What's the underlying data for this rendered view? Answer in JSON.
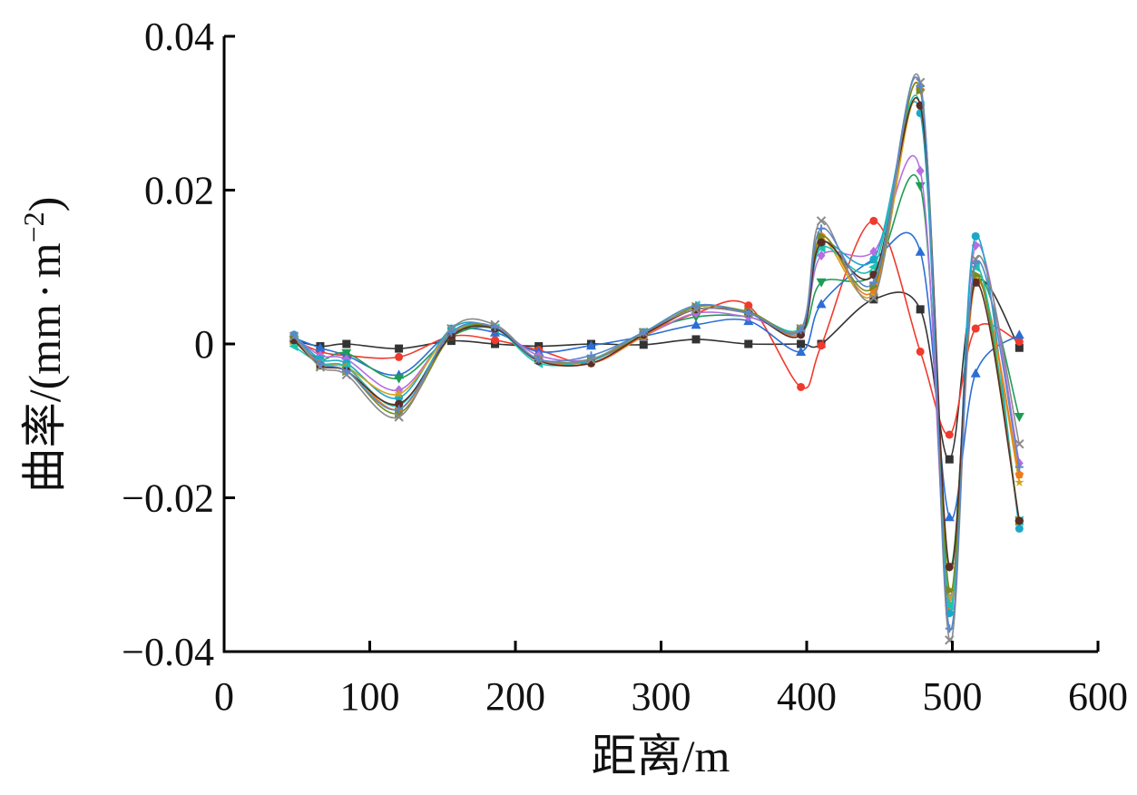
{
  "chart_data": {
    "type": "line",
    "title": "",
    "xlabel": "距离/m",
    "ylabel": "曲率/(mm·m⁻²)",
    "ylabel_parts": {
      "main": "曲率/(mm",
      "dot": "·",
      "m": "m",
      "sup": "−2",
      "close": ")"
    },
    "xlim": [
      0,
      600
    ],
    "ylim": [
      -0.04,
      0.04
    ],
    "xticks": [
      0,
      100,
      200,
      300,
      400,
      500,
      600
    ],
    "yticks": [
      -0.04,
      -0.02,
      0,
      0.02,
      0.04
    ],
    "ytick_labels": [
      "−0.04",
      "−0.02",
      "0",
      "0.02",
      "0.04"
    ],
    "grid": false,
    "legend": "none",
    "x": [
      48,
      66,
      84,
      120,
      156,
      186,
      216,
      252,
      288,
      324,
      360,
      396,
      410,
      446,
      478,
      498,
      516,
      546
    ],
    "series": [
      {
        "color": "#333333",
        "marker": "square",
        "values": [
          0.0005,
          -0.0003,
          0.0,
          -0.0006,
          0.0004,
          0.0,
          -0.0003,
          0.0,
          -0.0001,
          0.0006,
          0.0,
          0.0,
          0.0,
          0.0058,
          0.0045,
          -0.015,
          0.008,
          -0.0005
        ]
      },
      {
        "color": "#f03a2e",
        "marker": "circle",
        "values": [
          0.0005,
          -0.001,
          -0.0015,
          -0.0017,
          0.001,
          0.0005,
          -0.0008,
          -0.0025,
          0.001,
          0.004,
          0.005,
          -0.0056,
          -0.0002,
          0.016,
          -0.001,
          -0.0118,
          0.002,
          0.0003
        ]
      },
      {
        "color": "#2b6fd6",
        "marker": "triangle",
        "values": [
          0.0008,
          -0.0005,
          -0.0015,
          -0.004,
          0.0015,
          0.0015,
          -0.001,
          -0.0002,
          0.001,
          0.0025,
          0.003,
          -0.001,
          0.0052,
          0.011,
          0.012,
          -0.0225,
          -0.0038,
          0.0012
        ]
      },
      {
        "color": "#1e9c54",
        "marker": "triangle-down",
        "values": [
          0.0005,
          -0.002,
          -0.0012,
          -0.0045,
          0.001,
          0.002,
          -0.002,
          -0.002,
          0.0015,
          0.0035,
          0.0035,
          0.0015,
          0.008,
          0.009,
          0.0205,
          -0.029,
          0.0085,
          -0.0095
        ]
      },
      {
        "color": "#b56fe0",
        "marker": "diamond",
        "values": [
          0.001,
          -0.0015,
          -0.002,
          -0.006,
          0.0015,
          0.002,
          -0.0015,
          -0.002,
          0.001,
          0.004,
          0.0035,
          0.002,
          0.0115,
          0.012,
          0.0225,
          -0.033,
          0.0128,
          -0.0155
        ]
      },
      {
        "color": "#1aa8c9",
        "marker": "circle",
        "values": [
          0.0012,
          -0.002,
          -0.0025,
          -0.007,
          0.002,
          0.002,
          -0.002,
          -0.0022,
          0.0015,
          0.0045,
          0.004,
          0.002,
          0.013,
          0.011,
          0.03,
          -0.035,
          0.014,
          -0.024
        ]
      },
      {
        "color": "#d9a11a",
        "marker": "star",
        "values": [
          0.0008,
          -0.0025,
          -0.003,
          -0.0065,
          0.0015,
          0.002,
          -0.002,
          -0.0025,
          0.0012,
          0.0045,
          0.004,
          0.002,
          0.0135,
          0.0065,
          0.031,
          -0.033,
          0.0085,
          -0.018
        ]
      },
      {
        "color": "#f07a18",
        "marker": "pentagon",
        "values": [
          0.0005,
          -0.0025,
          -0.003,
          -0.0085,
          0.001,
          0.002,
          -0.002,
          -0.0025,
          0.001,
          0.0045,
          0.004,
          0.0015,
          0.014,
          0.007,
          0.033,
          -0.034,
          0.008,
          -0.017
        ]
      },
      {
        "color": "#1dc4b0",
        "marker": "triangle-left",
        "values": [
          -0.0003,
          -0.0025,
          -0.003,
          -0.008,
          0.0015,
          0.002,
          -0.0025,
          -0.002,
          0.0015,
          0.005,
          0.004,
          0.002,
          0.0125,
          0.01,
          0.031,
          -0.034,
          0.01,
          -0.023
        ]
      },
      {
        "color": "#7a8a1c",
        "marker": "triangle-right",
        "values": [
          0.0005,
          -0.0028,
          -0.0035,
          -0.009,
          0.001,
          0.0022,
          -0.002,
          -0.002,
          0.0012,
          0.0048,
          0.0042,
          0.0018,
          0.014,
          0.0075,
          0.033,
          -0.032,
          0.009,
          -0.023
        ]
      },
      {
        "color": "#5a2e26",
        "marker": "circle",
        "values": [
          0.0005,
          -0.0028,
          -0.0035,
          -0.0078,
          0.001,
          0.002,
          -0.0022,
          -0.0025,
          0.0012,
          0.0045,
          0.004,
          0.0012,
          0.0132,
          0.009,
          0.031,
          -0.029,
          0.008,
          -0.023
        ]
      },
      {
        "color": "#8a8a8a",
        "marker": "x",
        "values": [
          0.001,
          -0.003,
          -0.004,
          -0.0095,
          0.002,
          0.0025,
          -0.002,
          -0.002,
          0.0015,
          0.0045,
          0.004,
          0.002,
          0.016,
          0.006,
          0.034,
          -0.0385,
          0.011,
          -0.013
        ]
      },
      {
        "color": "#5b88c9",
        "marker": "cross",
        "values": [
          0.0012,
          -0.0025,
          -0.0035,
          -0.0085,
          0.0015,
          0.0022,
          -0.002,
          -0.0015,
          0.0015,
          0.005,
          0.004,
          0.0018,
          0.015,
          0.008,
          0.0335,
          -0.037,
          0.0105,
          -0.016
        ]
      }
    ]
  }
}
